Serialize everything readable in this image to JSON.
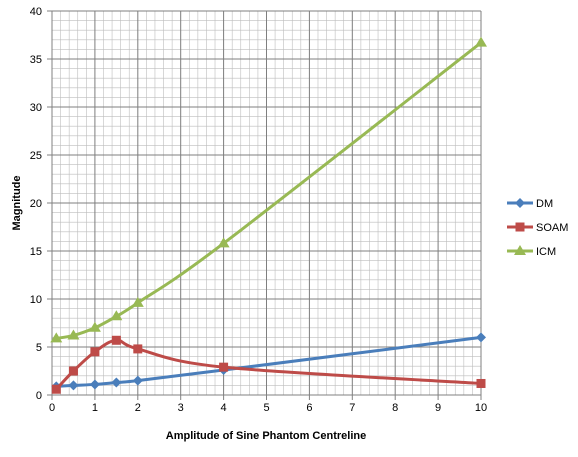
{
  "chart_data": {
    "type": "line",
    "title": "",
    "xlabel": "Amplitude of Sine Phantom Centreline",
    "ylabel": "Magnitude",
    "xlim": [
      0,
      10
    ],
    "ylim": [
      0,
      40
    ],
    "xticks": [
      0,
      1,
      2,
      3,
      4,
      5,
      6,
      7,
      8,
      9,
      10
    ],
    "yticks": [
      0,
      5,
      10,
      15,
      20,
      25,
      30,
      35,
      40
    ],
    "minor_x_step": 0.2,
    "minor_y_step": 1,
    "grid": true,
    "smooth": true,
    "legend_position": "right",
    "series": [
      {
        "name": "DM",
        "color": "#4a7ebb",
        "marker": "diamond",
        "x": [
          0.1,
          0.5,
          1,
          1.5,
          2,
          4,
          10
        ],
        "y": [
          0.9,
          1.0,
          1.1,
          1.3,
          1.5,
          2.6,
          6.0
        ]
      },
      {
        "name": "SOAM",
        "color": "#be4b48",
        "marker": "square",
        "x": [
          0.1,
          0.5,
          1,
          1.5,
          2,
          4,
          10
        ],
        "y": [
          0.6,
          2.5,
          4.5,
          5.7,
          4.8,
          2.9,
          1.2
        ]
      },
      {
        "name": "ICM",
        "color": "#98b954",
        "marker": "triangle",
        "x": [
          0.1,
          0.5,
          1,
          1.5,
          2,
          4,
          10
        ],
        "y": [
          5.9,
          6.2,
          7.0,
          8.2,
          9.6,
          15.8,
          36.7
        ]
      }
    ]
  }
}
